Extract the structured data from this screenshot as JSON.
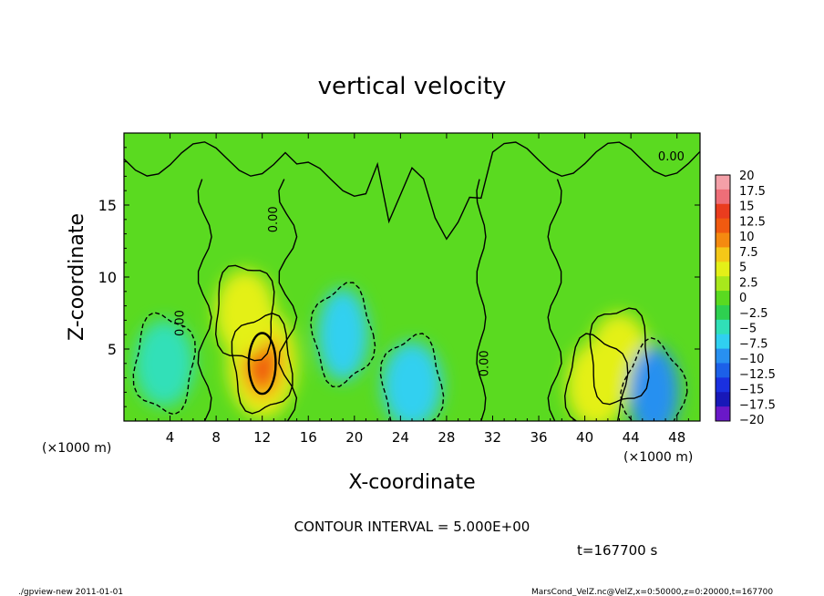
{
  "chart_data": {
    "type": "heatmap",
    "title": "vertical velocity",
    "xlabel": "X-coordinate",
    "ylabel": "Z-coordinate",
    "x_unit": "(×1000 m)",
    "x_unit_right": "(×1000 m)",
    "xlim": [
      0,
      50
    ],
    "ylim": [
      0,
      20
    ],
    "x_ticks": [
      "4",
      "8",
      "12",
      "16",
      "20",
      "24",
      "28",
      "32",
      "36",
      "40",
      "44",
      "48"
    ],
    "y_ticks": [
      "5",
      "10",
      "15"
    ],
    "colorbar_labels": [
      "20",
      "17.5",
      "15",
      "12.5",
      "10",
      "7.5",
      "5",
      "2.5",
      "0",
      "−2.5",
      "−5",
      "−7.5",
      "−10",
      "−12.5",
      "−15",
      "−17.5",
      "−20"
    ],
    "colorbar_colors": [
      "#f4a0a8",
      "#ee6e78",
      "#ea3c1e",
      "#f05a10",
      "#f48a10",
      "#f4c818",
      "#e4f018",
      "#a8e81c",
      "#5ada20",
      "#2ed050",
      "#30e0b8",
      "#30d0f0",
      "#2890f0",
      "#1c60e8",
      "#1a30e0",
      "#1818b8",
      "#6a18c8"
    ],
    "contour_label": "0.00",
    "features": [
      {
        "x": 12,
        "z": 4,
        "value": 12.5
      },
      {
        "x": 10.5,
        "z": 7.5,
        "value": 6
      },
      {
        "x": 41,
        "z": 2.5,
        "value": 6
      },
      {
        "x": 43,
        "z": 4.5,
        "value": 6
      },
      {
        "x": 19,
        "z": 6,
        "value": -7
      },
      {
        "x": 25,
        "z": 2.5,
        "value": -6
      },
      {
        "x": 46,
        "z": 2,
        "value": -8
      },
      {
        "x": 3.5,
        "z": 4,
        "value": -3
      }
    ]
  },
  "footer": {
    "contour_interval": "CONTOUR INTERVAL = 5.000E+00",
    "time": "t=167700 s",
    "program": "./gpview-new  2011-01-01",
    "source": "MarsCond_VelZ.nc@VelZ,x=0:50000,z=0:20000,t=167700"
  }
}
